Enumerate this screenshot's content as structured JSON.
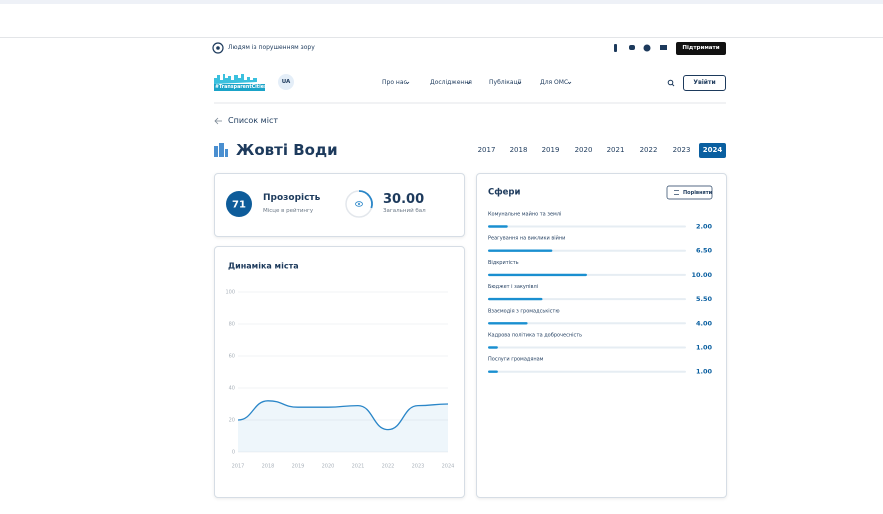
{
  "header": {
    "accessibility": "Людям із порушенням зору",
    "support_button": "Підтримати"
  },
  "nav": {
    "logo": "#TransparentCities",
    "language": "UA",
    "menu": [
      "Про нас",
      "Дослідження",
      "Публікації",
      "Для ОМС"
    ],
    "login_button": "Увійти"
  },
  "page": {
    "back_link": "Список міст",
    "city": "Жовті Води",
    "years": [
      {
        "label": "2017"
      },
      {
        "label": "2018"
      },
      {
        "label": "2019"
      },
      {
        "label": "2020"
      },
      {
        "label": "2021"
      },
      {
        "label": "2022"
      },
      {
        "label": "2023"
      },
      {
        "label": "2024",
        "selected": true
      }
    ]
  },
  "transparency": {
    "rank": "71",
    "title": "Прозорість",
    "rank_caption": "Місце в рейтингу",
    "score": 30,
    "score_label": "30.00",
    "score_caption": "Загальний бал",
    "score_range": [
      0,
      100
    ]
  },
  "chart_data": [
    {
      "type": "line",
      "title": "Динаміка міста",
      "x": [
        2017,
        2018,
        2019,
        2020,
        2021,
        2022,
        2023,
        2024
      ],
      "series": [
        {
          "values": [
            20,
            32,
            28,
            28,
            29,
            14,
            29,
            30
          ],
          "color": "#2a86c8"
        }
      ],
      "xlim": [
        2017,
        2024
      ],
      "ylim": [
        0,
        100
      ],
      "yticks": [
        0,
        20,
        40,
        60,
        80,
        100
      ],
      "grid": true,
      "area": true
    },
    {
      "type": "hbar",
      "title": "Сфери",
      "button": "Порівняти",
      "categories": [
        "Комунальне майно та землі",
        "Реагування на виклики війни",
        "Відкритість",
        "Бюджет і закупівлі",
        "Взаємодія з громадськістю",
        "Кадрова політика та доброчесність",
        "Послуги громадянам"
      ],
      "values": [
        2,
        6.5,
        10,
        5.5,
        4,
        1,
        1
      ],
      "value_labels": [
        "2.00",
        "6.50",
        "10.00",
        "5.50",
        "4.00",
        "1.00",
        "1.00"
      ],
      "xlim": [
        0,
        20
      ],
      "color": "#1a8fd0"
    }
  ]
}
